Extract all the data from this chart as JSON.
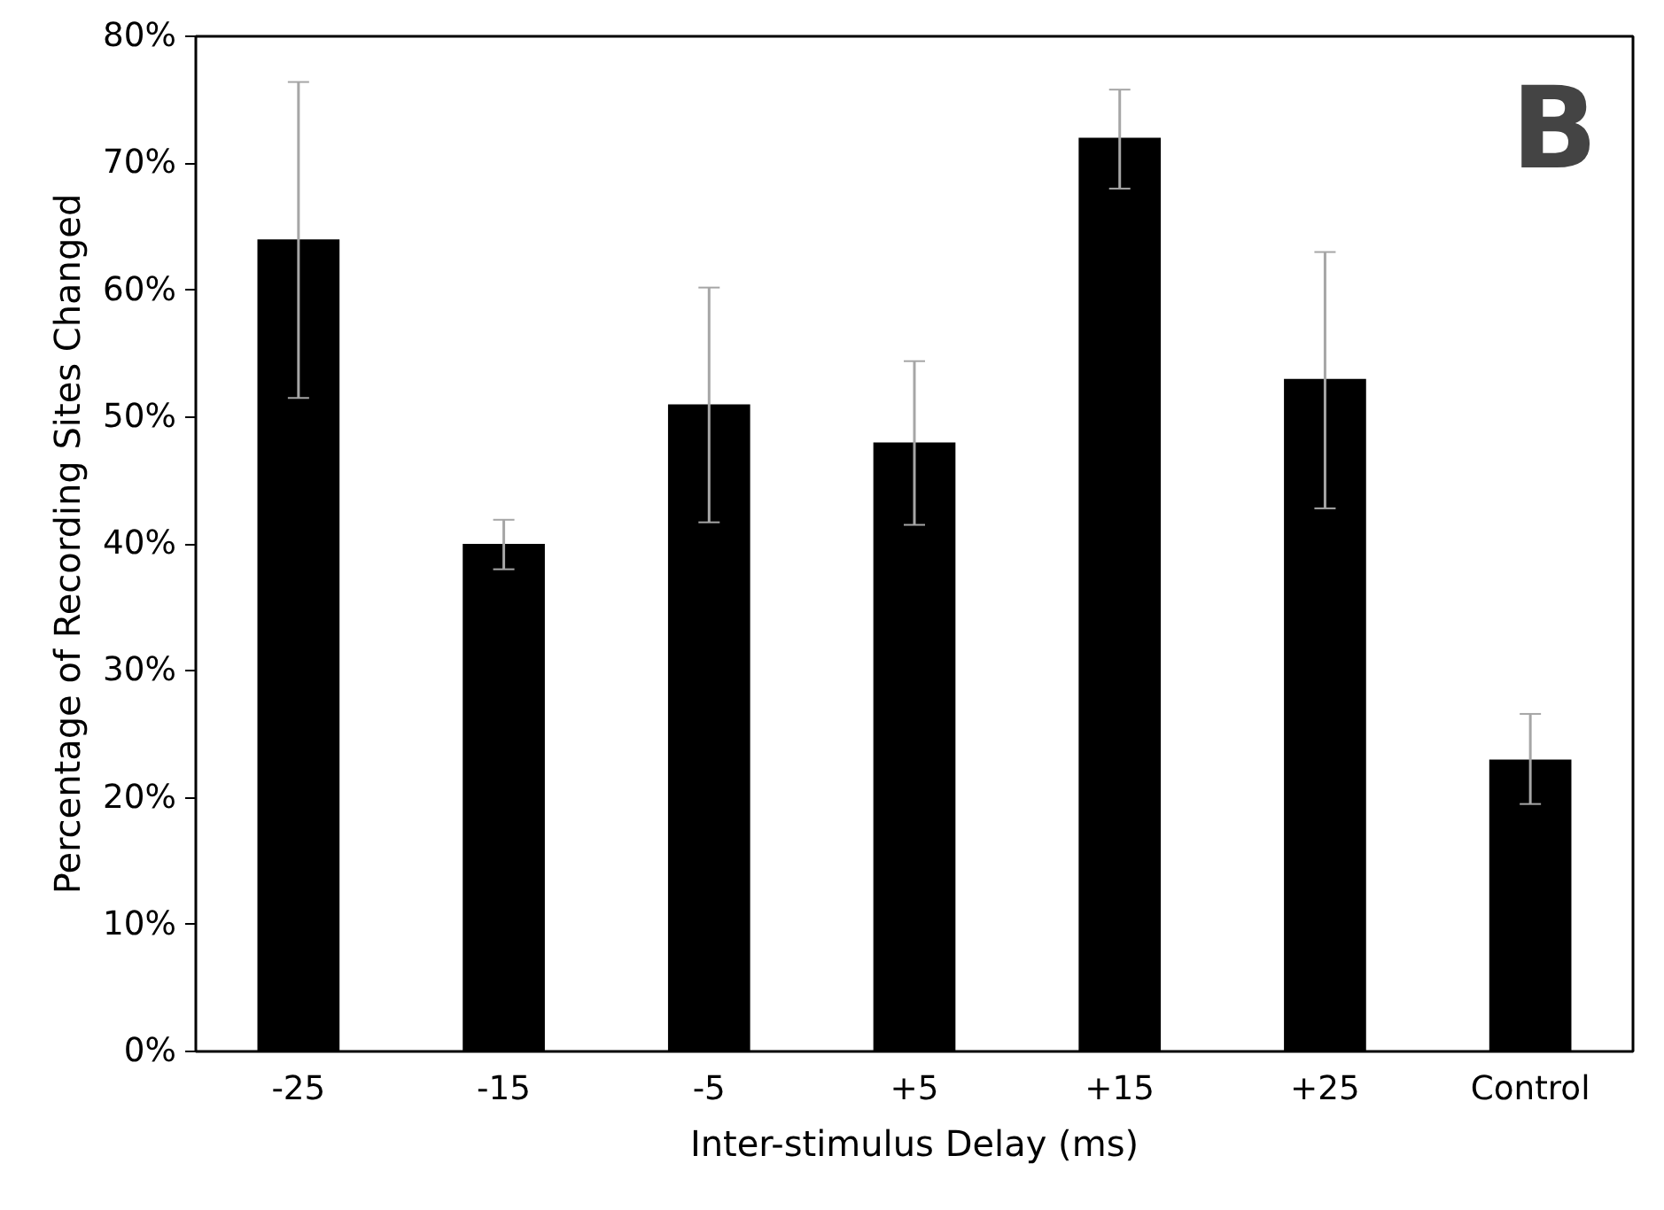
{
  "chart_data": {
    "type": "bar",
    "xlabel": "Inter-stimulus Delay (ms)",
    "ylabel": "Percentage of Recording Sites Changed",
    "categories": [
      "-25",
      "-15",
      "-5",
      "+5",
      "+15",
      "+25",
      "Control"
    ],
    "values": [
      64,
      40,
      51,
      48,
      72,
      53,
      23
    ],
    "errors": [
      [
        51.5,
        76.4
      ],
      [
        38.0,
        41.9
      ],
      [
        41.7,
        60.2
      ],
      [
        41.5,
        54.4
      ],
      [
        68.0,
        75.8
      ],
      [
        42.8,
        63.0
      ],
      [
        19.5,
        26.6
      ]
    ],
    "color": "#000000",
    "ylim": [
      0,
      80
    ],
    "yticks": [
      {
        "value": 0,
        "label": "0%"
      },
      {
        "value": 10,
        "label": "10%"
      },
      {
        "value": 20,
        "label": "20%"
      },
      {
        "value": 30,
        "label": "30%"
      },
      {
        "value": 40,
        "label": "40%"
      },
      {
        "value": 50,
        "label": "50%"
      },
      {
        "value": 60,
        "label": "60%"
      },
      {
        "value": 70,
        "label": "70%"
      },
      {
        "value": 80,
        "label": "80%"
      }
    ],
    "grid": false,
    "annotations": [
      "B"
    ]
  }
}
